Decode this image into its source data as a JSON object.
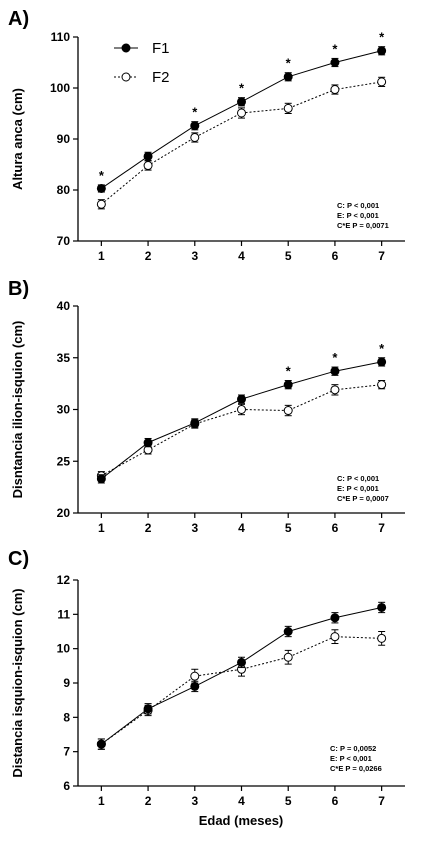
{
  "figure": {
    "xlabel": "Edad (meses)"
  },
  "chart_data": [
    {
      "panel": "A)",
      "type": "line",
      "ylabel": "Altura anca (cm)",
      "ylim": [
        70,
        110
      ],
      "yticks": [
        70,
        80,
        90,
        100,
        110
      ],
      "x": [
        1,
        2,
        3,
        4,
        5,
        6,
        7
      ],
      "series": [
        {
          "name": "F1",
          "values": [
            80.3,
            86.6,
            92.6,
            97.3,
            102.2,
            105.0,
            107.3
          ],
          "errors": [
            0.7,
            0.8,
            0.8,
            0.8,
            0.8,
            0.8,
            0.8
          ],
          "marker": "filled",
          "line": "solid"
        },
        {
          "name": "F2",
          "values": [
            77.2,
            84.8,
            90.3,
            95.1,
            96.0,
            99.7,
            101.2
          ],
          "errors": [
            0.9,
            0.9,
            0.9,
            1.0,
            1.0,
            0.9,
            0.9
          ],
          "marker": "open",
          "line": "dotted"
        }
      ],
      "significance": [
        "*",
        "",
        "*",
        "*",
        "*",
        "*",
        "*"
      ],
      "stats": [
        "C: P < 0,001",
        "E: P < 0,001",
        "C*E P = 0,0071"
      ],
      "legend": "top-left"
    },
    {
      "panel": "B)",
      "type": "line",
      "ylabel": "Disntancia ilion-isquion (cm)",
      "ylim": [
        20,
        40
      ],
      "yticks": [
        20,
        25,
        30,
        35,
        40
      ],
      "x": [
        1,
        2,
        3,
        4,
        5,
        6,
        7
      ],
      "series": [
        {
          "name": "F1",
          "values": [
            23.3,
            26.8,
            28.7,
            31.0,
            32.4,
            33.7,
            34.6
          ],
          "errors": [
            0.4,
            0.4,
            0.4,
            0.4,
            0.4,
            0.4,
            0.4
          ],
          "marker": "filled",
          "line": "solid"
        },
        {
          "name": "F2",
          "values": [
            23.6,
            26.1,
            28.6,
            30.0,
            29.9,
            31.9,
            32.4
          ],
          "errors": [
            0.4,
            0.4,
            0.4,
            0.5,
            0.5,
            0.5,
            0.4
          ],
          "marker": "open",
          "line": "dotted"
        }
      ],
      "significance": [
        "",
        "",
        "",
        "",
        "*",
        "*",
        "*"
      ],
      "stats": [
        "C: P < 0,001",
        "E: P < 0,001",
        "C*E P = 0,0007"
      ]
    },
    {
      "panel": "C)",
      "type": "line",
      "ylabel": "Distancia isquion-isquion (cm)",
      "ylim": [
        6,
        12
      ],
      "yticks": [
        6,
        7,
        8,
        9,
        10,
        11,
        12
      ],
      "x": [
        1,
        2,
        3,
        4,
        5,
        6,
        7
      ],
      "series": [
        {
          "name": "F1",
          "values": [
            7.22,
            8.25,
            8.9,
            9.6,
            10.5,
            10.9,
            11.2
          ],
          "errors": [
            0.15,
            0.15,
            0.15,
            0.15,
            0.15,
            0.15,
            0.15
          ],
          "marker": "filled",
          "line": "solid"
        },
        {
          "name": "F2",
          "values": [
            7.22,
            8.2,
            9.2,
            9.4,
            9.75,
            10.35,
            10.3
          ],
          "errors": [
            0.15,
            0.15,
            0.2,
            0.2,
            0.2,
            0.2,
            0.2
          ],
          "marker": "open",
          "line": "dotted"
        }
      ],
      "significance": [
        "",
        "",
        "",
        "",
        "",
        "",
        ""
      ],
      "stats": [
        "C: P = 0,0052",
        "E: P < 0,001",
        "C*E P = 0,0266"
      ]
    }
  ]
}
